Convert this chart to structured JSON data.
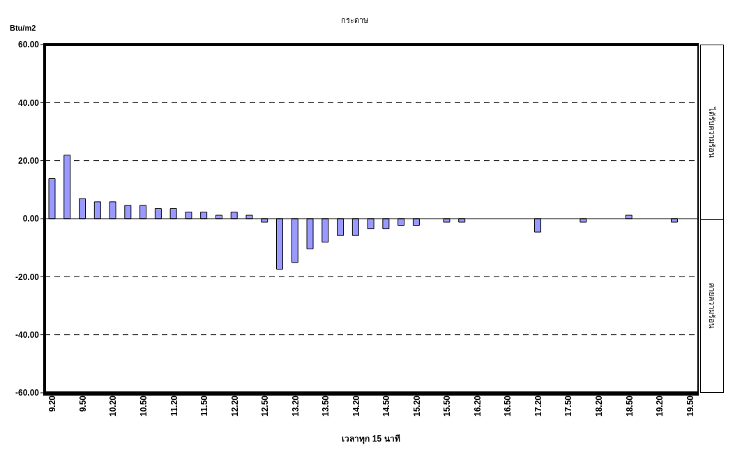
{
  "chart_data": {
    "type": "bar",
    "title": "กระดาษ",
    "xlabel": "เวลาทุก 15 นาที",
    "ylabel": "Btu/m2",
    "categories": [
      "9.20",
      null,
      "9.50",
      null,
      "10.20",
      null,
      "10.50",
      null,
      "11.20",
      null,
      "11.50",
      null,
      "12.20",
      null,
      "12.50",
      null,
      "13.20",
      null,
      "13.50",
      null,
      "14.20",
      null,
      "14.50",
      null,
      "15.20",
      null,
      "15.50",
      null,
      "16.20",
      null,
      "16.50",
      null,
      "17.20",
      null,
      "17.50",
      null,
      "18.20",
      null,
      "18.50",
      null,
      "19.20",
      null,
      "19.50"
    ],
    "values": [
      13.8,
      21.9,
      6.9,
      5.8,
      5.8,
      4.6,
      4.6,
      3.5,
      3.5,
      2.3,
      2.3,
      1.2,
      2.3,
      1.2,
      -1.2,
      -17.4,
      -15.1,
      -10.4,
      -8.1,
      -5.8,
      -5.8,
      -3.5,
      -3.5,
      -2.3,
      -2.3,
      0,
      -1.2,
      -1.2,
      0,
      0,
      0,
      0,
      -4.6,
      0,
      0,
      -1.2,
      0,
      0,
      1.2,
      0,
      0,
      -1.2,
      0
    ],
    "color": "#9999ff",
    "ylim": [
      -60,
      60
    ],
    "yticks": [
      {
        "value": -60,
        "label": "-60.00"
      },
      {
        "value": -40,
        "label": "-40.00"
      },
      {
        "value": -20,
        "label": "-20.00"
      },
      {
        "value": 0,
        "label": "0.00"
      },
      {
        "value": 20,
        "label": "20.00"
      },
      {
        "value": 40,
        "label": "40.00"
      },
      {
        "value": 60,
        "label": "60.00"
      }
    ],
    "grid": "y",
    "annotations": [
      "ได้รับความร้อน",
      "คายความร้อน"
    ]
  }
}
